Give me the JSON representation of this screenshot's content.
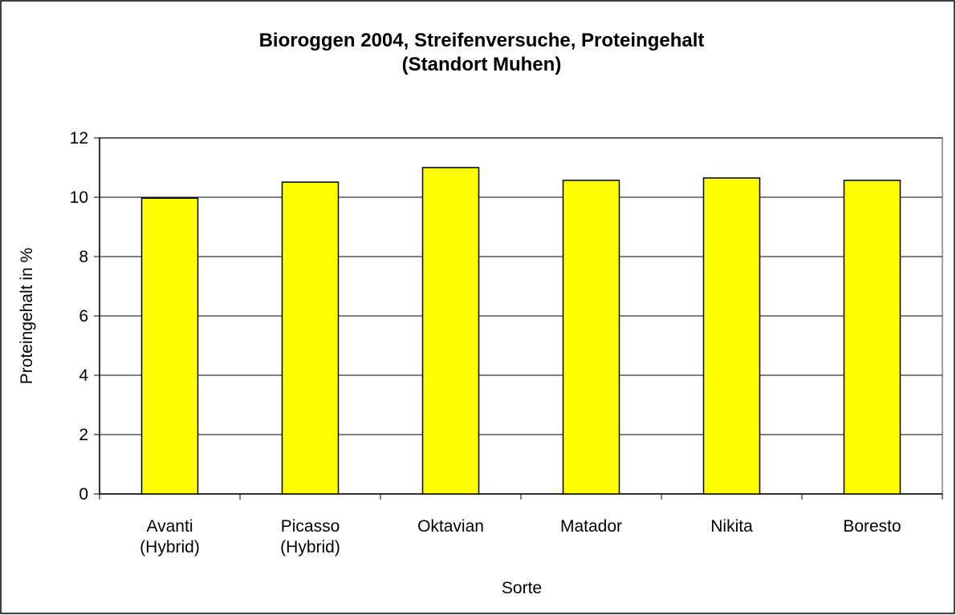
{
  "chart_data": {
    "type": "bar",
    "title": "Bioroggen 2004, Streifenversuche, Proteingehalt\n(Standort Muhen)",
    "x_label": "Sorte",
    "y_label": "Proteingehalt in %",
    "categories": [
      "Avanti\n(Hybrid)",
      "Picasso\n(Hybrid)",
      "Oktavian",
      "Matador",
      "Nikita",
      "Boresto"
    ],
    "values": [
      9.97,
      10.51,
      11.0,
      10.57,
      10.65,
      10.57
    ],
    "color": "#ffff00",
    "ylim": [
      0,
      12
    ],
    "yticks": [
      0,
      2,
      4,
      6,
      8,
      10,
      12
    ],
    "grid": true
  }
}
